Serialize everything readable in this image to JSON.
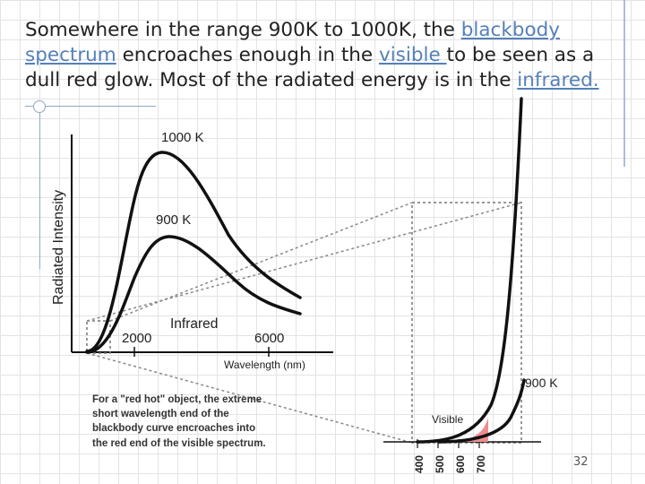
{
  "slide": {
    "title_parts": {
      "p1": "Somewhere in the range 900K to 1000K, the ",
      "link1": "blackbody spectrum",
      "p2": " encroaches enough in the ",
      "link2": "visible ",
      "p3": "to be seen as a dull red glow. Most of the radiated energy is in the ",
      "link3": "infrared."
    },
    "page_number": "32"
  },
  "diagram": {
    "y_axis_label": "Radiated Intensity",
    "x_axis_label": "Wavelength (nm)",
    "curve_labels": {
      "hot": "1000 K",
      "warm": "900 K",
      "zoom": "900 K"
    },
    "region_labels": {
      "infrared": "Infrared",
      "visible": "Visible"
    },
    "x_ticks": [
      "2000",
      "6000"
    ],
    "zoom_ticks": [
      "400",
      "500",
      "600",
      "700"
    ],
    "note": "For a \"red hot\" object, the extreme short wavelength end of the blackbody curve encroaches into the red end of the visible spectrum.",
    "colors": {
      "visible_fill": "#f08c8c",
      "curve": "#111111",
      "link": "#5580b8"
    }
  }
}
